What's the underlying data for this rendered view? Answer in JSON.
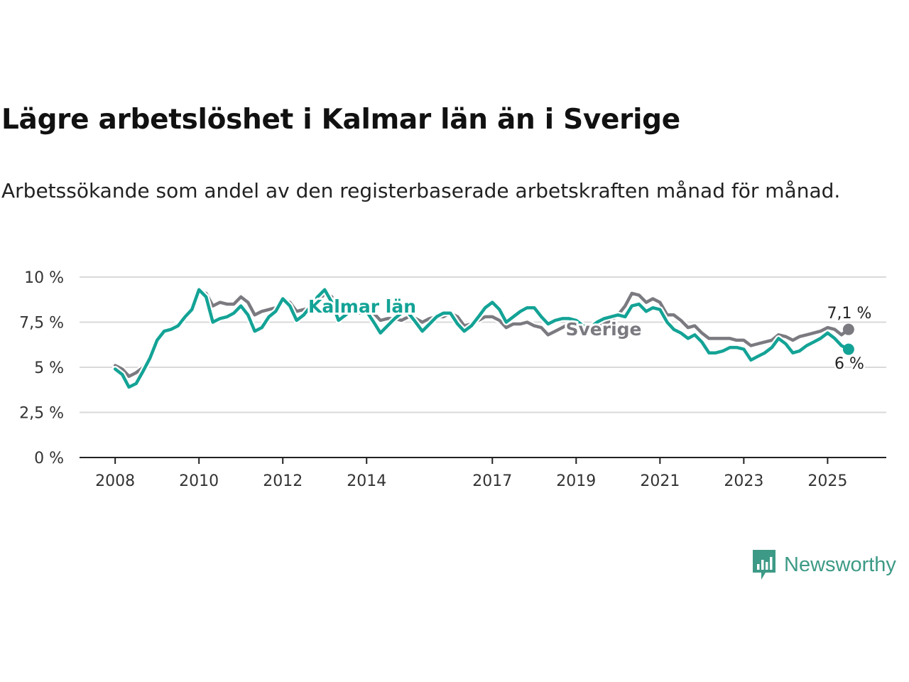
{
  "title": "Lägre arbetslöshet i Kalmar län än i Sverige",
  "subtitle": "Arbetssökande som andel av den registerbaserade arbetskraften månad för månad.",
  "brand": {
    "name": "Newsworthy",
    "icon": "newsworthy-logo-icon",
    "color": "#3d9a86"
  },
  "chart_data": {
    "type": "line",
    "y_ticks": [
      {
        "value": 0,
        "label": "0 %"
      },
      {
        "value": 2.5,
        "label": "2,5 %"
      },
      {
        "value": 5,
        "label": "5 %"
      },
      {
        "value": 7.5,
        "label": "7,5 %"
      },
      {
        "value": 10,
        "label": "10 %"
      }
    ],
    "x_ticks": [
      {
        "value": 2008,
        "label": "2008"
      },
      {
        "value": 2010,
        "label": "2010"
      },
      {
        "value": 2012,
        "label": "2012"
      },
      {
        "value": 2014,
        "label": "2014"
      },
      {
        "value": 2017,
        "label": "2017"
      },
      {
        "value": 2019,
        "label": "2019"
      },
      {
        "value": 2021,
        "label": "2021"
      },
      {
        "value": 2023,
        "label": "2023"
      },
      {
        "value": 2025,
        "label": "2025"
      }
    ],
    "xlim": [
      2007.15,
      2026.4
    ],
    "ylim": [
      0,
      10
    ],
    "grid": true,
    "series": [
      {
        "name": "Sverige",
        "color": "#7a7a80",
        "end_label": "7,1 %",
        "points": [
          [
            2008.0,
            5.1
          ],
          [
            2008.17,
            4.9
          ],
          [
            2008.33,
            4.5
          ],
          [
            2008.5,
            4.7
          ],
          [
            2008.67,
            5.0
          ],
          [
            2008.83,
            5.6
          ],
          [
            2009.0,
            6.6
          ],
          [
            2009.17,
            7.0
          ],
          [
            2009.33,
            7.2
          ],
          [
            2009.5,
            7.4
          ],
          [
            2009.67,
            7.9
          ],
          [
            2009.83,
            8.3
          ],
          [
            2010.0,
            9.2
          ],
          [
            2010.17,
            9.1
          ],
          [
            2010.33,
            8.4
          ],
          [
            2010.5,
            8.6
          ],
          [
            2010.67,
            8.5
          ],
          [
            2010.83,
            8.5
          ],
          [
            2011.0,
            8.9
          ],
          [
            2011.17,
            8.6
          ],
          [
            2011.33,
            7.9
          ],
          [
            2011.5,
            8.1
          ],
          [
            2011.67,
            8.2
          ],
          [
            2011.83,
            8.3
          ],
          [
            2012.0,
            8.7
          ],
          [
            2012.17,
            8.6
          ],
          [
            2012.33,
            8.1
          ],
          [
            2012.5,
            8.2
          ],
          [
            2012.67,
            8.3
          ],
          [
            2012.83,
            8.6
          ],
          [
            2013.0,
            9.1
          ],
          [
            2013.17,
            8.9
          ],
          [
            2013.33,
            8.3
          ],
          [
            2013.5,
            8.2
          ],
          [
            2013.67,
            8.1
          ],
          [
            2013.83,
            8.0
          ],
          [
            2014.0,
            8.2
          ],
          [
            2014.17,
            8.0
          ],
          [
            2014.33,
            7.6
          ],
          [
            2014.5,
            7.7
          ],
          [
            2014.67,
            7.7
          ],
          [
            2014.83,
            7.6
          ],
          [
            2015.0,
            7.8
          ],
          [
            2015.17,
            7.7
          ],
          [
            2015.33,
            7.5
          ],
          [
            2015.5,
            7.7
          ],
          [
            2015.67,
            7.8
          ],
          [
            2015.83,
            7.8
          ],
          [
            2016.0,
            8.0
          ],
          [
            2016.17,
            7.8
          ],
          [
            2016.33,
            7.3
          ],
          [
            2016.5,
            7.4
          ],
          [
            2016.67,
            7.6
          ],
          [
            2016.83,
            7.8
          ],
          [
            2017.0,
            7.8
          ],
          [
            2017.17,
            7.6
          ],
          [
            2017.33,
            7.2
          ],
          [
            2017.5,
            7.4
          ],
          [
            2017.67,
            7.4
          ],
          [
            2017.83,
            7.5
          ],
          [
            2018.0,
            7.3
          ],
          [
            2018.17,
            7.2
          ],
          [
            2018.33,
            6.8
          ],
          [
            2018.5,
            7.0
          ],
          [
            2018.67,
            7.2
          ],
          [
            2018.83,
            7.4
          ],
          [
            2019.0,
            7.5
          ],
          [
            2019.17,
            7.3
          ],
          [
            2019.33,
            7.0
          ],
          [
            2019.5,
            7.2
          ],
          [
            2019.67,
            7.4
          ],
          [
            2019.83,
            7.6
          ],
          [
            2020.0,
            7.9
          ],
          [
            2020.17,
            8.4
          ],
          [
            2020.33,
            9.1
          ],
          [
            2020.5,
            9.0
          ],
          [
            2020.67,
            8.6
          ],
          [
            2020.83,
            8.8
          ],
          [
            2021.0,
            8.6
          ],
          [
            2021.17,
            7.9
          ],
          [
            2021.33,
            7.9
          ],
          [
            2021.5,
            7.6
          ],
          [
            2021.67,
            7.2
          ],
          [
            2021.83,
            7.3
          ],
          [
            2022.0,
            6.9
          ],
          [
            2022.17,
            6.6
          ],
          [
            2022.33,
            6.6
          ],
          [
            2022.5,
            6.6
          ],
          [
            2022.67,
            6.6
          ],
          [
            2022.83,
            6.5
          ],
          [
            2023.0,
            6.5
          ],
          [
            2023.17,
            6.2
          ],
          [
            2023.33,
            6.3
          ],
          [
            2023.5,
            6.4
          ],
          [
            2023.67,
            6.5
          ],
          [
            2023.83,
            6.8
          ],
          [
            2024.0,
            6.7
          ],
          [
            2024.17,
            6.5
          ],
          [
            2024.33,
            6.7
          ],
          [
            2024.5,
            6.8
          ],
          [
            2024.67,
            6.9
          ],
          [
            2024.83,
            7.0
          ],
          [
            2025.0,
            7.2
          ],
          [
            2025.17,
            7.1
          ],
          [
            2025.33,
            6.8
          ],
          [
            2025.5,
            7.1
          ]
        ]
      },
      {
        "name": "Kalmar län",
        "color": "#13a396",
        "end_label": "6 %",
        "points": [
          [
            2008.0,
            4.9
          ],
          [
            2008.17,
            4.6
          ],
          [
            2008.33,
            3.9
          ],
          [
            2008.5,
            4.1
          ],
          [
            2008.67,
            4.8
          ],
          [
            2008.83,
            5.5
          ],
          [
            2009.0,
            6.5
          ],
          [
            2009.17,
            7.0
          ],
          [
            2009.33,
            7.1
          ],
          [
            2009.5,
            7.3
          ],
          [
            2009.67,
            7.8
          ],
          [
            2009.83,
            8.2
          ],
          [
            2010.0,
            9.3
          ],
          [
            2010.17,
            8.9
          ],
          [
            2010.33,
            7.5
          ],
          [
            2010.5,
            7.7
          ],
          [
            2010.67,
            7.8
          ],
          [
            2010.83,
            8.0
          ],
          [
            2011.0,
            8.4
          ],
          [
            2011.17,
            7.9
          ],
          [
            2011.33,
            7.0
          ],
          [
            2011.5,
            7.2
          ],
          [
            2011.67,
            7.8
          ],
          [
            2011.83,
            8.1
          ],
          [
            2012.0,
            8.8
          ],
          [
            2012.17,
            8.4
          ],
          [
            2012.33,
            7.6
          ],
          [
            2012.5,
            7.9
          ],
          [
            2012.67,
            8.4
          ],
          [
            2012.83,
            8.9
          ],
          [
            2013.0,
            9.3
          ],
          [
            2013.17,
            8.6
          ],
          [
            2013.33,
            7.6
          ],
          [
            2013.5,
            7.9
          ],
          [
            2013.67,
            8.3
          ],
          [
            2013.83,
            8.4
          ],
          [
            2014.0,
            8.1
          ],
          [
            2014.17,
            7.5
          ],
          [
            2014.33,
            6.9
          ],
          [
            2014.5,
            7.3
          ],
          [
            2014.67,
            7.7
          ],
          [
            2014.83,
            8.0
          ],
          [
            2015.0,
            8.0
          ],
          [
            2015.17,
            7.5
          ],
          [
            2015.33,
            7.0
          ],
          [
            2015.5,
            7.4
          ],
          [
            2015.67,
            7.8
          ],
          [
            2015.83,
            8.0
          ],
          [
            2016.0,
            8.0
          ],
          [
            2016.17,
            7.4
          ],
          [
            2016.33,
            7.0
          ],
          [
            2016.5,
            7.3
          ],
          [
            2016.67,
            7.8
          ],
          [
            2016.83,
            8.3
          ],
          [
            2017.0,
            8.6
          ],
          [
            2017.17,
            8.2
          ],
          [
            2017.33,
            7.5
          ],
          [
            2017.5,
            7.8
          ],
          [
            2017.67,
            8.1
          ],
          [
            2017.83,
            8.3
          ],
          [
            2018.0,
            8.3
          ],
          [
            2018.17,
            7.8
          ],
          [
            2018.33,
            7.4
          ],
          [
            2018.5,
            7.6
          ],
          [
            2018.67,
            7.7
          ],
          [
            2018.83,
            7.7
          ],
          [
            2019.0,
            7.6
          ],
          [
            2019.17,
            7.3
          ],
          [
            2019.33,
            7.2
          ],
          [
            2019.5,
            7.5
          ],
          [
            2019.67,
            7.7
          ],
          [
            2019.83,
            7.8
          ],
          [
            2020.0,
            7.9
          ],
          [
            2020.17,
            7.8
          ],
          [
            2020.33,
            8.4
          ],
          [
            2020.5,
            8.5
          ],
          [
            2020.67,
            8.1
          ],
          [
            2020.83,
            8.3
          ],
          [
            2021.0,
            8.2
          ],
          [
            2021.17,
            7.5
          ],
          [
            2021.33,
            7.1
          ],
          [
            2021.5,
            6.9
          ],
          [
            2021.67,
            6.6
          ],
          [
            2021.83,
            6.8
          ],
          [
            2022.0,
            6.4
          ],
          [
            2022.17,
            5.8
          ],
          [
            2022.33,
            5.8
          ],
          [
            2022.5,
            5.9
          ],
          [
            2022.67,
            6.1
          ],
          [
            2022.83,
            6.1
          ],
          [
            2023.0,
            6.0
          ],
          [
            2023.17,
            5.4
          ],
          [
            2023.33,
            5.6
          ],
          [
            2023.5,
            5.8
          ],
          [
            2023.67,
            6.1
          ],
          [
            2023.83,
            6.6
          ],
          [
            2024.0,
            6.3
          ],
          [
            2024.17,
            5.8
          ],
          [
            2024.33,
            5.9
          ],
          [
            2024.5,
            6.2
          ],
          [
            2024.67,
            6.4
          ],
          [
            2024.83,
            6.6
          ],
          [
            2025.0,
            6.9
          ],
          [
            2025.17,
            6.6
          ],
          [
            2025.33,
            6.2
          ],
          [
            2025.5,
            6.0
          ]
        ]
      }
    ]
  }
}
